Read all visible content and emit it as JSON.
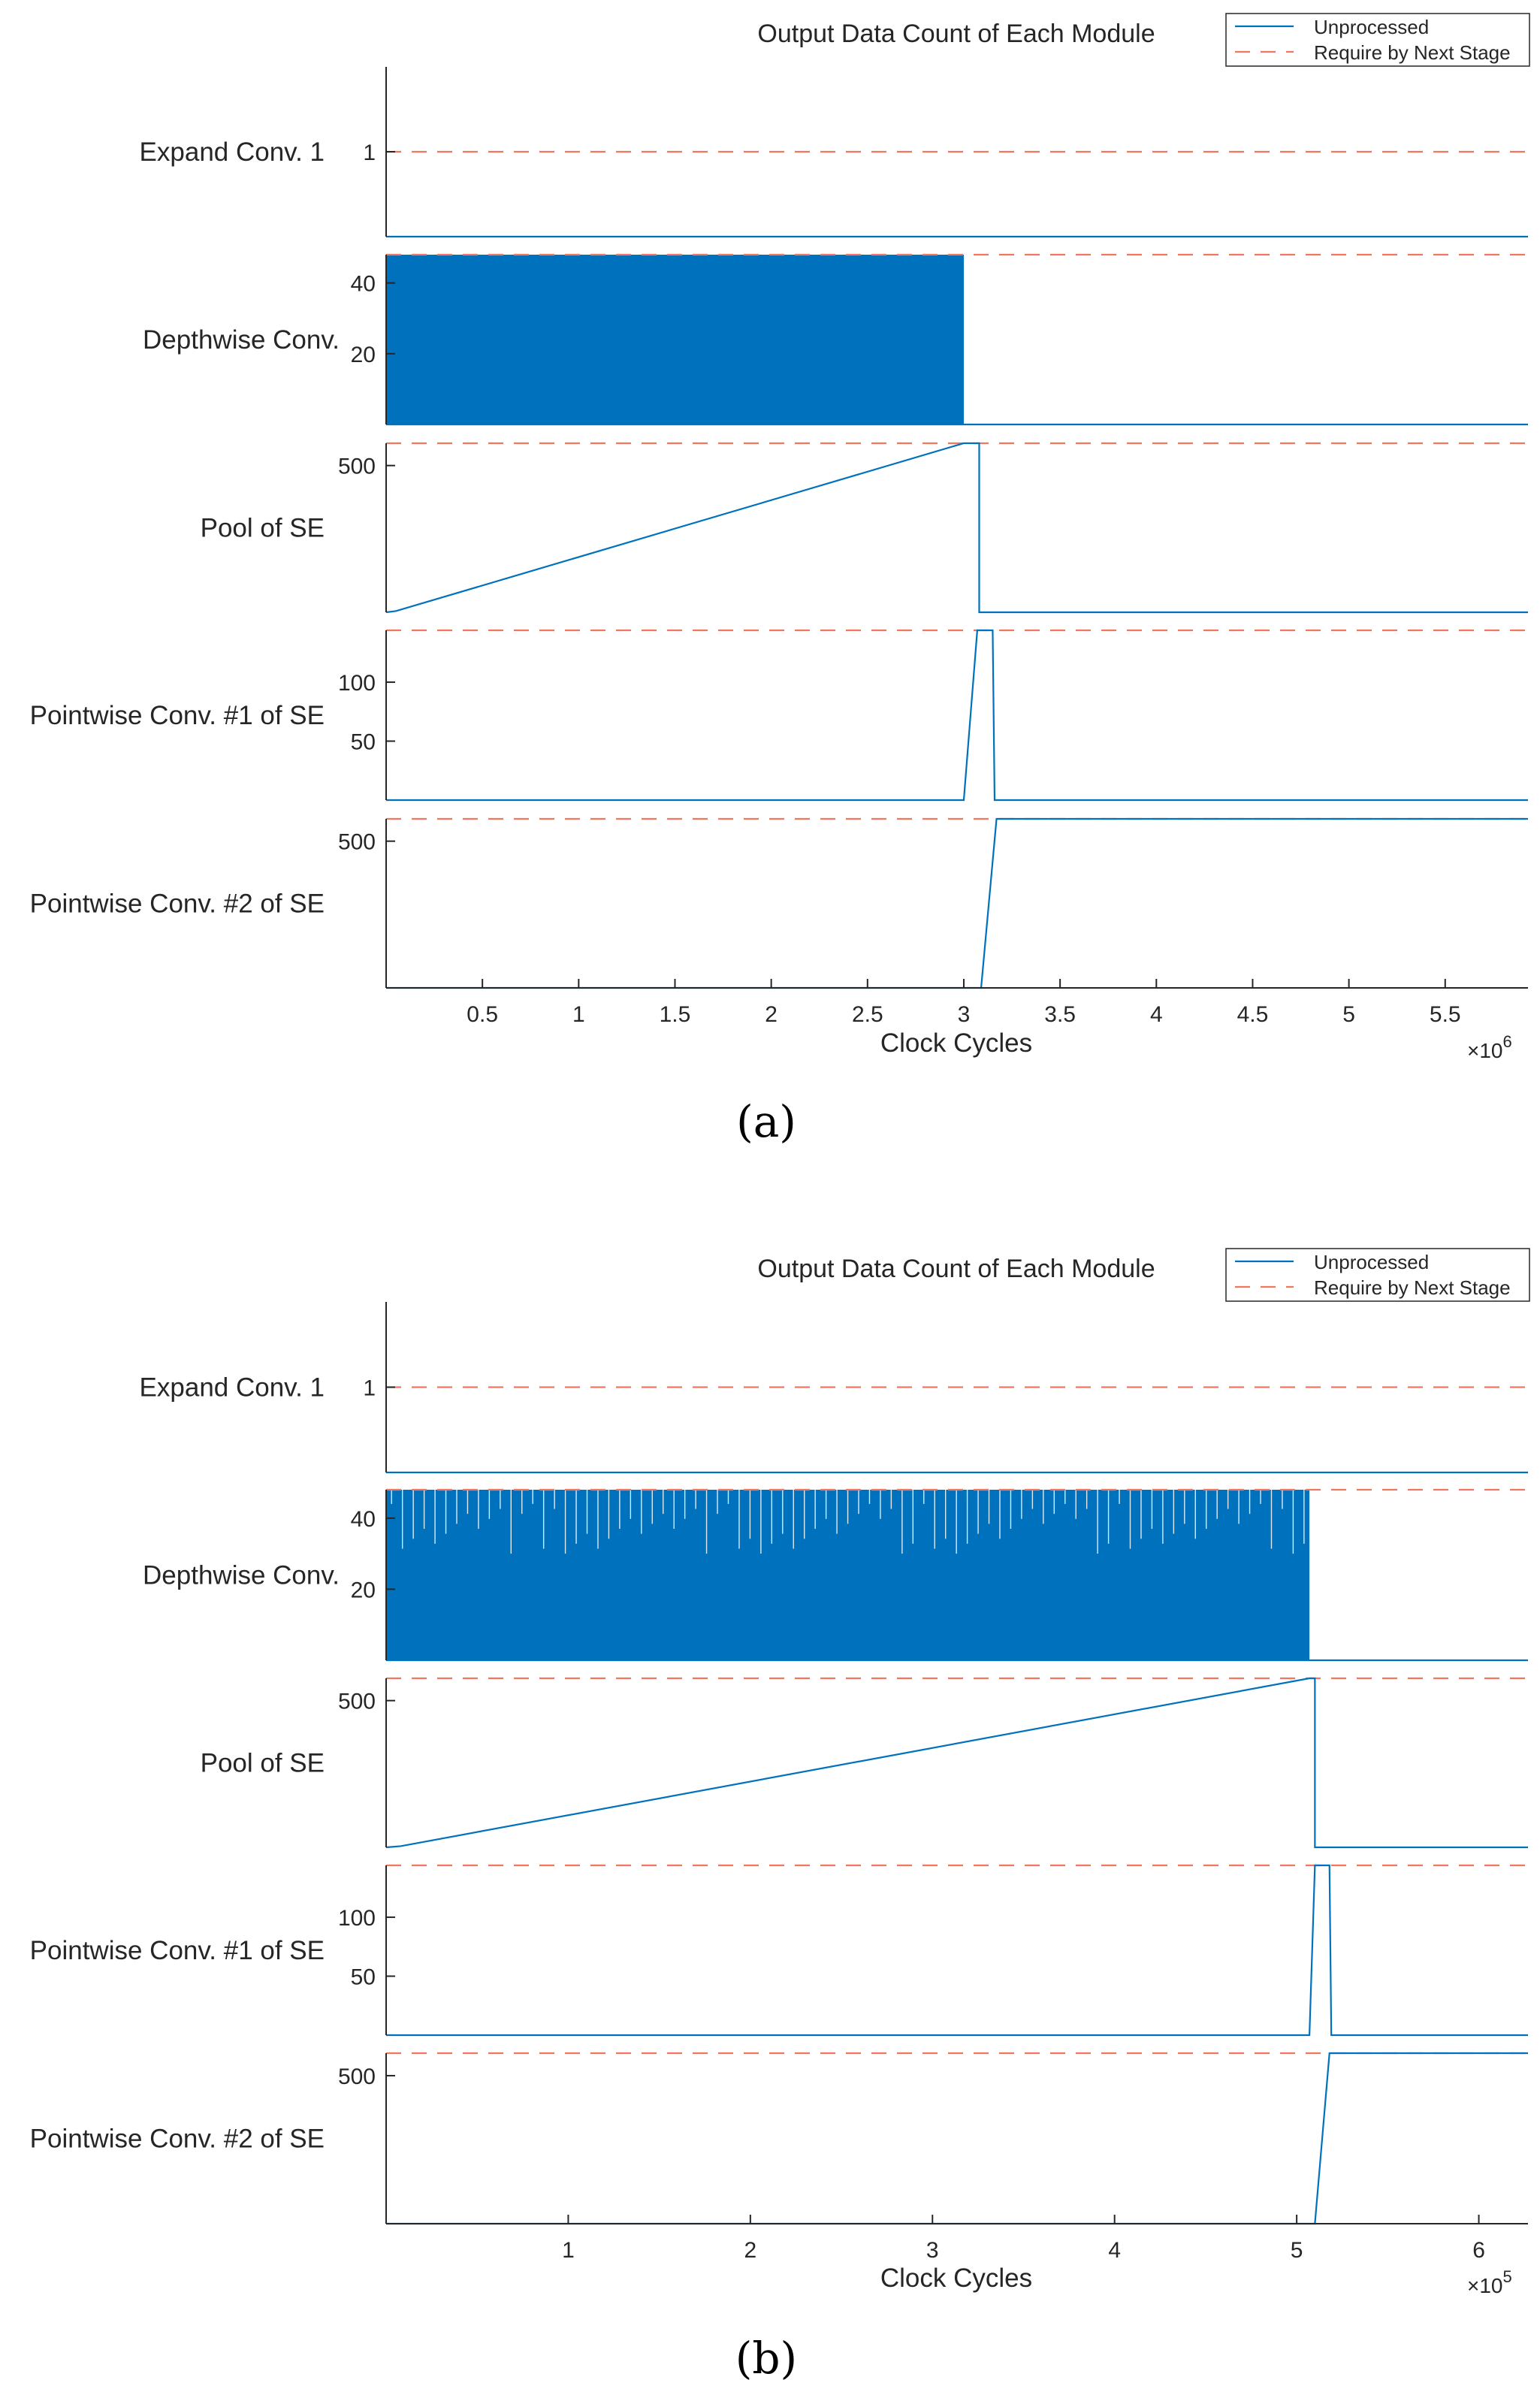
{
  "colors": {
    "series": "#0072BD",
    "threshold": "#F07860",
    "axis": "#262626"
  },
  "chart_data": [
    {
      "type": "line",
      "caption": "(a)",
      "title": "Output Data Count of Each Module",
      "xlabel": "Clock Cycles",
      "x_exponent_base": "×10",
      "x_exponent_power": "6",
      "xlim": [
        0,
        5.93
      ],
      "x_ticks": [
        0.5,
        1,
        1.5,
        2,
        2.5,
        3,
        3.5,
        4,
        4.5,
        5,
        5.5
      ],
      "x_tick_labels": [
        "0.5",
        "1",
        "1.5",
        "2",
        "2.5",
        "3",
        "3.5",
        "4",
        "4.5",
        "5",
        "5.5"
      ],
      "legend": {
        "position": "top-right",
        "entries": [
          "Unprocessed",
          "Require by Next Stage"
        ]
      },
      "panels": [
        {
          "ylabel": "Expand Conv. 1",
          "ylim": [
            0,
            2
          ],
          "y_ticks": [
            1
          ],
          "y_tick_labels": [
            "1"
          ],
          "threshold": 1,
          "series": [
            [
              0,
              0
            ],
            [
              5.93,
              0
            ]
          ]
        },
        {
          "ylabel": "Depthwise Conv.",
          "ylim": [
            0,
            48
          ],
          "y_ticks": [
            20,
            40
          ],
          "y_tick_labels": [
            "20",
            "40"
          ],
          "threshold": 48,
          "filled_band": {
            "x_start": 0,
            "x_end": 3.0,
            "ymin": 0,
            "ymax": 48
          },
          "series": [
            [
              0,
              0
            ],
            [
              3.0,
              0
            ],
            [
              5.93,
              0
            ]
          ]
        },
        {
          "ylabel": "Pool of SE",
          "ylim": [
            0,
            576
          ],
          "y_ticks": [
            500
          ],
          "y_tick_labels": [
            "500"
          ],
          "threshold": 576,
          "series": [
            [
              0,
              0
            ],
            [
              0.05,
              4
            ],
            [
              3.0,
              576
            ],
            [
              3.08,
              576
            ],
            [
              3.08,
              0
            ],
            [
              5.93,
              0
            ]
          ]
        },
        {
          "ylabel": "Pointwise Conv. #1 of SE",
          "ylim": [
            0,
            144
          ],
          "y_ticks": [
            50,
            100
          ],
          "y_tick_labels": [
            "50",
            "100"
          ],
          "threshold": 144,
          "series": [
            [
              0,
              0
            ],
            [
              3.0,
              0
            ],
            [
              3.07,
              144
            ],
            [
              3.15,
              144
            ],
            [
              3.16,
              0
            ],
            [
              5.93,
              0
            ]
          ]
        },
        {
          "ylabel": "Pointwise Conv. #2 of SE",
          "ylim": [
            0,
            576
          ],
          "y_ticks": [
            500
          ],
          "y_tick_labels": [
            "500"
          ],
          "threshold": 576,
          "series": [
            [
              0,
              0
            ],
            [
              3.09,
              0
            ],
            [
              3.17,
              576
            ],
            [
              5.93,
              576
            ]
          ]
        }
      ]
    },
    {
      "type": "line",
      "caption": "(b)",
      "title": "Output Data Count of Each Module",
      "xlabel": "Clock Cycles",
      "x_exponent_base": "×10",
      "x_exponent_power": "5",
      "xlim": [
        0,
        6.27
      ],
      "x_ticks": [
        1,
        2,
        3,
        4,
        5,
        6
      ],
      "x_tick_labels": [
        "1",
        "2",
        "3",
        "4",
        "5",
        "6"
      ],
      "legend": {
        "position": "top-right",
        "entries": [
          "Unprocessed",
          "Require by Next Stage"
        ]
      },
      "panels": [
        {
          "ylabel": "Expand Conv. 1",
          "ylim": [
            0,
            2
          ],
          "y_ticks": [
            1
          ],
          "y_tick_labels": [
            "1"
          ],
          "threshold": 1,
          "series": [
            [
              0,
              0
            ],
            [
              6.27,
              0
            ]
          ]
        },
        {
          "ylabel": "Depthwise Conv.",
          "ylim": [
            0,
            48
          ],
          "y_ticks": [
            20,
            40
          ],
          "y_tick_labels": [
            "20",
            "40"
          ],
          "threshold": 48,
          "filled_band": {
            "x_start": 0,
            "x_end": 5.07,
            "ymin": 0,
            "ymax": 48
          },
          "series": [
            [
              0,
              0
            ],
            [
              5.07,
              0
            ],
            [
              6.27,
              0
            ]
          ]
        },
        {
          "ylabel": "Pool of SE",
          "ylim": [
            0,
            576
          ],
          "y_ticks": [
            500
          ],
          "y_tick_labels": [
            "500"
          ],
          "threshold": 576,
          "series": [
            [
              0,
              0
            ],
            [
              0.08,
              4
            ],
            [
              5.07,
              576
            ],
            [
              5.1,
              576
            ],
            [
              5.1,
              0
            ],
            [
              6.27,
              0
            ]
          ]
        },
        {
          "ylabel": "Pointwise Conv. #1 of SE",
          "ylim": [
            0,
            144
          ],
          "y_ticks": [
            50,
            100
          ],
          "y_tick_labels": [
            "50",
            "100"
          ],
          "threshold": 144,
          "series": [
            [
              0,
              0
            ],
            [
              5.07,
              0
            ],
            [
              5.1,
              144
            ],
            [
              5.18,
              144
            ],
            [
              5.19,
              0
            ],
            [
              6.27,
              0
            ]
          ]
        },
        {
          "ylabel": "Pointwise Conv. #2 of SE",
          "ylim": [
            0,
            576
          ],
          "y_ticks": [
            500
          ],
          "y_tick_labels": [
            "500"
          ],
          "threshold": 576,
          "series": [
            [
              0,
              0
            ],
            [
              5.1,
              0
            ],
            [
              5.18,
              576
            ],
            [
              6.27,
              576
            ]
          ]
        }
      ]
    }
  ]
}
